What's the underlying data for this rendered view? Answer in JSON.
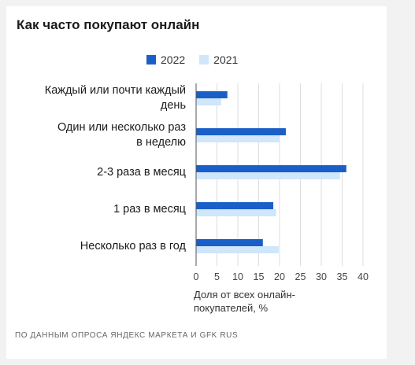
{
  "colors": {
    "series_2022": "#1a5fc8",
    "series_2021": "#cfe6fb",
    "axis": "#555555",
    "grid": "#dddddd"
  },
  "source_note": "ПО ДАННЫМ ОПРОСА ЯНДЕКС МАРКЕТА И GFK RUS",
  "chart_data": {
    "type": "bar",
    "orientation": "horizontal",
    "title": "Как часто покупают онлайн",
    "xlabel": "Доля от всех онлайн-покупателей, %",
    "xlim": [
      0,
      40
    ],
    "xticks": [
      "0",
      "5",
      "10",
      "15",
      "20",
      "25",
      "30",
      "35",
      "40"
    ],
    "xtick_values": [
      0,
      5,
      10,
      15,
      20,
      25,
      30,
      35,
      40
    ],
    "grid": true,
    "legend_position": "top",
    "categories": [
      [
        "Каждый или почти каждый",
        "день"
      ],
      [
        "Один или несколько раз",
        "в неделю"
      ],
      [
        "2-3 раза в месяц"
      ],
      [
        "1 раз в месяц"
      ],
      [
        "Несколько раз в год"
      ]
    ],
    "series": [
      {
        "name": "2022",
        "values": [
          7.5,
          21.5,
          36,
          18.5,
          16
        ]
      },
      {
        "name": "2021",
        "values": [
          6,
          20,
          34.5,
          19.2,
          19.8
        ]
      }
    ]
  }
}
